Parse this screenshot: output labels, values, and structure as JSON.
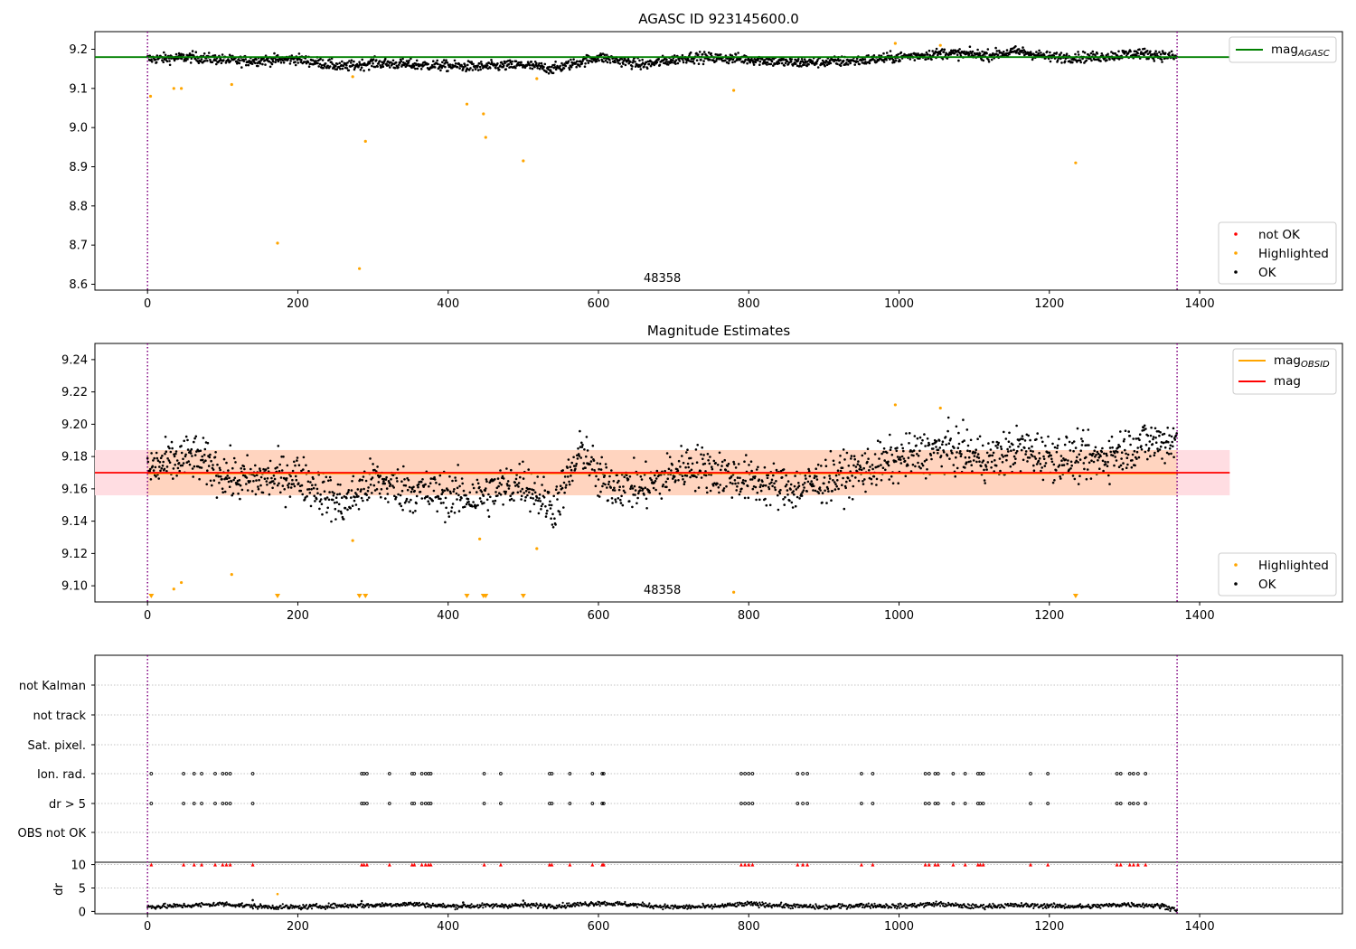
{
  "chart_data": [
    {
      "type": "scatter",
      "title": "AGASC ID 923145600.0",
      "xlim": [
        -70,
        1590
      ],
      "ylim": [
        8.585,
        9.245
      ],
      "x_ticks": [
        "0",
        "200",
        "400",
        "600",
        "800",
        "1000",
        "1200",
        "1400"
      ],
      "y_ticks": [
        "8.6",
        "8.7",
        "8.8",
        "8.9",
        "9.0",
        "9.1",
        "9.2"
      ],
      "y_tick_values": [
        8.6,
        8.7,
        8.8,
        8.9,
        9.0,
        9.1,
        9.2
      ],
      "obsid_label": "48358",
      "obsid_bounds": [
        0,
        1370
      ],
      "line": {
        "name_base": "mag",
        "name_sub": "AGASC",
        "value": 9.18,
        "x_range": [
          -70,
          1440
        ],
        "color": "#008000"
      },
      "legend_lines": [
        {
          "base": "mag",
          "sub": "AGASC",
          "color": "#008000"
        }
      ],
      "legend_points": [
        {
          "label": "not OK",
          "color": "#ff0000"
        },
        {
          "label": "Highlighted",
          "color": "#ffa500"
        },
        {
          "label": "OK",
          "color": "#000000"
        }
      ],
      "ok_trend": {
        "x": [
          0,
          60,
          120,
          200,
          260,
          300,
          360,
          440,
          500,
          540,
          600,
          660,
          720,
          800,
          860,
          940,
          1000,
          1060,
          1120,
          1160,
          1200,
          1260,
          1320,
          1370
        ],
        "y": [
          9.175,
          9.18,
          9.17,
          9.175,
          9.155,
          9.165,
          9.16,
          9.155,
          9.16,
          9.15,
          9.18,
          9.16,
          9.18,
          9.175,
          9.165,
          9.17,
          9.18,
          9.19,
          9.185,
          9.195,
          9.18,
          9.18,
          9.19,
          9.18
        ],
        "spread": 0.012
      },
      "highlighted": [
        [
          4,
          9.08
        ],
        [
          35,
          9.1
        ],
        [
          45,
          9.1
        ],
        [
          112,
          9.11
        ],
        [
          173,
          8.705
        ],
        [
          273,
          9.13
        ],
        [
          282,
          8.64
        ],
        [
          290,
          8.965
        ],
        [
          425,
          9.06
        ],
        [
          447,
          9.035
        ],
        [
          450,
          8.975
        ],
        [
          500,
          8.915
        ],
        [
          518,
          9.125
        ],
        [
          780,
          9.095
        ],
        [
          995,
          9.215
        ],
        [
          1055,
          9.21
        ],
        [
          1235,
          8.91
        ]
      ]
    },
    {
      "type": "scatter",
      "title": "Magnitude Estimates",
      "xlim": [
        -70,
        1590
      ],
      "ylim": [
        9.09,
        9.25
      ],
      "x_ticks": [
        "0",
        "200",
        "400",
        "600",
        "800",
        "1000",
        "1200",
        "1400"
      ],
      "y_ticks": [
        "9.10",
        "9.12",
        "9.14",
        "9.16",
        "9.18",
        "9.20",
        "9.22",
        "9.24"
      ],
      "y_tick_values": [
        9.1,
        9.12,
        9.14,
        9.16,
        9.18,
        9.2,
        9.22,
        9.24
      ],
      "obsid_label": "48358",
      "obsid_bounds": [
        0,
        1370
      ],
      "band_outer": {
        "y": [
          9.156,
          9.184
        ],
        "x_range": [
          -70,
          1440
        ],
        "color": "#ffdde2"
      },
      "band_inner": {
        "y": [
          9.156,
          9.184
        ],
        "x_range": [
          0,
          1370
        ],
        "color": "#ffd4bf"
      },
      "lines": [
        {
          "base": "mag",
          "sub": "OBSID",
          "value": 9.1695,
          "x_range": [
            0,
            1370
          ],
          "color": "#ffa500"
        },
        {
          "base": "mag",
          "sub": "",
          "value": 9.17,
          "x_range": [
            -70,
            1440
          ],
          "color": "#ff0000"
        }
      ],
      "legend_lines": [
        {
          "base": "mag",
          "sub": "OBSID",
          "color": "#ffa500"
        },
        {
          "base": "mag",
          "sub": "",
          "color": "#ff0000"
        }
      ],
      "legend_points": [
        {
          "label": "Highlighted",
          "color": "#ffa500"
        },
        {
          "label": "OK",
          "color": "#000000"
        }
      ],
      "ok_trend": {
        "x": [
          0,
          60,
          120,
          200,
          260,
          300,
          360,
          440,
          500,
          540,
          580,
          600,
          660,
          720,
          800,
          860,
          940,
          1000,
          1060,
          1120,
          1160,
          1200,
          1260,
          1320,
          1370
        ],
        "y": [
          9.172,
          9.18,
          9.165,
          9.168,
          9.15,
          9.165,
          9.158,
          9.155,
          9.165,
          9.148,
          9.185,
          9.165,
          9.16,
          9.175,
          9.165,
          9.16,
          9.17,
          9.178,
          9.185,
          9.178,
          9.185,
          9.18,
          9.178,
          9.188,
          9.19
        ],
        "spread": 0.0125
      },
      "highlighted": [
        [
          35,
          9.098
        ],
        [
          45,
          9.102
        ],
        [
          112,
          9.107
        ],
        [
          273,
          9.128
        ],
        [
          442,
          9.129
        ],
        [
          518,
          9.123
        ],
        [
          780,
          9.096
        ],
        [
          995,
          9.212
        ],
        [
          1055,
          9.21
        ]
      ],
      "highlighted_below": [
        5,
        173,
        282,
        290,
        425,
        447,
        450,
        500,
        1235
      ]
    },
    {
      "type": "scatter",
      "title": "",
      "xlim": [
        -70,
        1590
      ],
      "x_ticks": [
        "0",
        "200",
        "400",
        "600",
        "800",
        "1000",
        "1200",
        "1400"
      ],
      "flag_rows": [
        "not Kalman",
        "not track",
        "Sat. pixel.",
        "Ion. rad.",
        "dr > 5",
        "OBS not OK"
      ],
      "ylabel": "dr",
      "dr_ylim": [
        -0.5,
        10.5
      ],
      "dr_ticks": [
        "0",
        "5",
        "10"
      ],
      "dr_tick_values": [
        0,
        5,
        10
      ],
      "obsid_bounds": [
        0,
        1370
      ],
      "flag_times": [
        5,
        48,
        62,
        72,
        90,
        100,
        105,
        110,
        140,
        285,
        288,
        292,
        322,
        352,
        355,
        365,
        370,
        374,
        377,
        448,
        470,
        535,
        538,
        562,
        592,
        605,
        607,
        790,
        795,
        800,
        805,
        865,
        872,
        878,
        950,
        965,
        1035,
        1040,
        1048,
        1052,
        1072,
        1088,
        1105,
        1108,
        1112,
        1175,
        1198,
        1290,
        1295,
        1307,
        1312,
        1318,
        1328
      ],
      "dr_trend": {
        "x": [
          0,
          50,
          100,
          150,
          200,
          250,
          300,
          350,
          400,
          450,
          500,
          550,
          600,
          650,
          700,
          750,
          800,
          850,
          900,
          950,
          1000,
          1050,
          1100,
          1150,
          1200,
          1250,
          1300,
          1350,
          1370
        ],
        "y": [
          1.0,
          1.2,
          1.6,
          1.0,
          0.9,
          1.2,
          1.3,
          1.6,
          1.1,
          1.2,
          1.3,
          1.2,
          1.8,
          1.4,
          0.9,
          1.0,
          1.6,
          1.2,
          0.9,
          1.3,
          1.1,
          1.6,
          1.0,
          1.3,
          1.2,
          1.0,
          1.5,
          1.2,
          0.4
        ]
      },
      "dr_outliers": [
        [
          173,
          3.7
        ],
        [
          285,
          2.2
        ],
        [
          500,
          2.3
        ],
        [
          140,
          2.4
        ],
        [
          420,
          1.9
        ]
      ]
    }
  ]
}
